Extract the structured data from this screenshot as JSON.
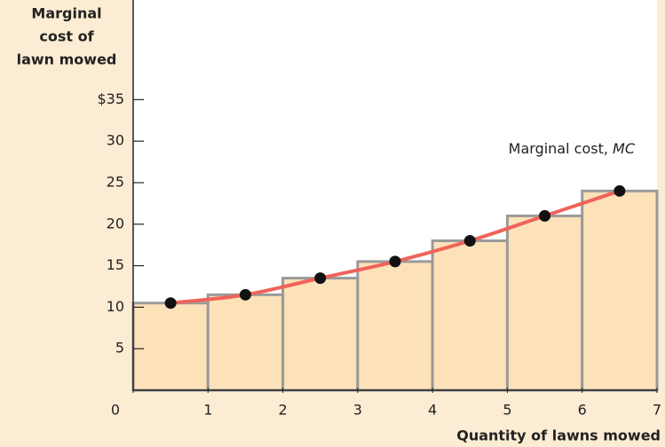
{
  "chart_data": {
    "type": "bar",
    "ylabel": [
      "Marginal",
      "cost of",
      "lawn mowed"
    ],
    "xlabel": "Quantity of lawns mowed",
    "curve_label": "Marginal cost,",
    "curve_label_symbol": "MC",
    "x": [
      0.5,
      1.5,
      2.5,
      3.5,
      4.5,
      5.5,
      6.5
    ],
    "values": [
      10.5,
      11.5,
      13.5,
      15.5,
      18,
      21,
      24
    ],
    "bar_color": "#fde1b9",
    "bar_edge_color": "#9a9a9a",
    "curve_color": "#ef635a",
    "dot_color": "#111111",
    "xlim": [
      0,
      7
    ],
    "xticks": [
      0,
      1,
      2,
      3,
      4,
      5,
      6,
      7
    ],
    "ylim": [
      0,
      47
    ],
    "yticks": [
      5,
      10,
      15,
      20,
      25,
      30,
      {
        "value": 35,
        "label": "$35"
      }
    ]
  }
}
